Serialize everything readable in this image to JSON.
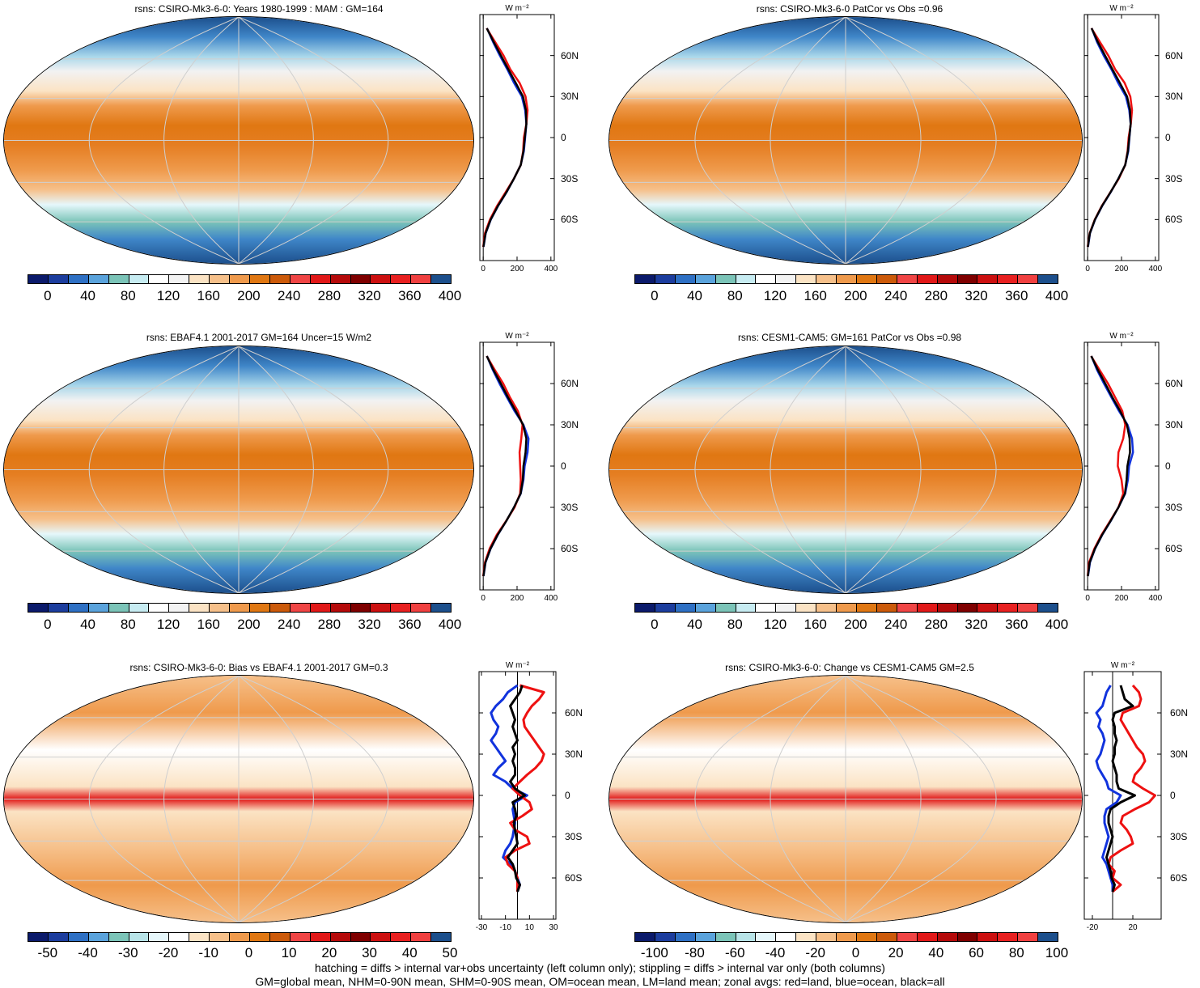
{
  "chart_data": [
    {
      "type": "heatmap",
      "title": "rsns: CSIRO-Mk3-6-0: Years 1980-1999 : MAM : GM=164",
      "colorbar_ticks": [
        "0",
        "40",
        "80",
        "120",
        "160",
        "200",
        "240",
        "280",
        "320",
        "360",
        "400"
      ],
      "zonal_units": "W m⁻²",
      "zonal_xticks": [
        "0",
        "200",
        "400"
      ],
      "zonal_xrange": [
        -20,
        420
      ],
      "lat_ticks": [
        "60N",
        "30N",
        "0",
        "30S",
        "60S"
      ],
      "zonal": {
        "lat": [
          80,
          70,
          60,
          50,
          40,
          30,
          20,
          10,
          0,
          -10,
          -20,
          -30,
          -40,
          -50,
          -60,
          -70,
          -80
        ],
        "land": [
          20,
          70,
          120,
          160,
          215,
          250,
          262,
          255,
          240,
          236,
          222,
          182,
          132,
          82,
          40,
          10,
          0
        ],
        "ocean": [
          22,
          58,
          98,
          142,
          182,
          228,
          248,
          255,
          248,
          240,
          222,
          182,
          138,
          88,
          45,
          15,
          2
        ],
        "all": [
          21,
          62,
          105,
          148,
          192,
          235,
          252,
          255,
          246,
          238,
          222,
          182,
          137,
          87,
          44,
          14,
          1
        ]
      }
    },
    {
      "type": "heatmap",
      "title": "rsns: CSIRO-Mk3-6-0 PatCor vs Obs =0.96",
      "colorbar_ticks": [
        "0",
        "40",
        "80",
        "120",
        "160",
        "200",
        "240",
        "280",
        "320",
        "360",
        "400"
      ],
      "zonal_units": "W m⁻²",
      "zonal_xticks": [
        "0",
        "200",
        "400"
      ],
      "zonal_xrange": [
        -20,
        420
      ],
      "lat_ticks": [
        "60N",
        "30N",
        "0",
        "30S",
        "60S"
      ],
      "zonal": {
        "lat": [
          80,
          70,
          60,
          50,
          40,
          30,
          20,
          10,
          0,
          -10,
          -20,
          -30,
          -40,
          -50,
          -60,
          -70,
          -80
        ],
        "land": [
          22,
          72,
          122,
          162,
          218,
          252,
          262,
          255,
          242,
          236,
          222,
          184,
          134,
          84,
          42,
          12,
          0
        ],
        "ocean": [
          24,
          55,
          95,
          140,
          180,
          226,
          246,
          254,
          247,
          240,
          222,
          182,
          136,
          86,
          44,
          14,
          2
        ],
        "all": [
          23,
          60,
          103,
          146,
          190,
          233,
          250,
          254,
          246,
          238,
          222,
          182,
          135,
          85,
          43,
          13,
          1
        ]
      }
    },
    {
      "type": "heatmap",
      "title": "rsns: EBAF4.1 2001-2017 GM=164 Uncer=15 W/m2",
      "colorbar_ticks": [
        "0",
        "40",
        "80",
        "120",
        "160",
        "200",
        "240",
        "280",
        "320",
        "360",
        "400"
      ],
      "zonal_units": "W m⁻²",
      "zonal_xticks": [
        "0",
        "200",
        "400"
      ],
      "zonal_xrange": [
        -20,
        420
      ],
      "lat_ticks": [
        "60N",
        "30N",
        "0",
        "30S",
        "60S"
      ],
      "zonal": {
        "lat": [
          80,
          70,
          60,
          50,
          40,
          30,
          20,
          10,
          0,
          -10,
          -20,
          -30,
          -40,
          -50,
          -60,
          -70,
          -80
        ],
        "land": [
          20,
          68,
          118,
          158,
          205,
          232,
          225,
          215,
          218,
          222,
          218,
          185,
          135,
          80,
          38,
          10,
          0
        ],
        "ocean": [
          22,
          56,
          96,
          140,
          185,
          238,
          268,
          262,
          245,
          238,
          222,
          182,
          136,
          86,
          44,
          14,
          2
        ],
        "all": [
          21,
          60,
          104,
          146,
          192,
          236,
          255,
          250,
          238,
          234,
          221,
          182,
          136,
          85,
          43,
          13,
          1
        ]
      }
    },
    {
      "type": "heatmap",
      "title": "rsns: CESM1-CAM5: GM=161 PatCor vs Obs =0.98",
      "colorbar_ticks": [
        "0",
        "40",
        "80",
        "120",
        "160",
        "200",
        "240",
        "280",
        "320",
        "360",
        "400"
      ],
      "zonal_units": "W m⁻²",
      "zonal_xticks": [
        "0",
        "200",
        "400"
      ],
      "zonal_xrange": [
        -20,
        420
      ],
      "lat_ticks": [
        "60N",
        "30N",
        "0",
        "30S",
        "60S"
      ],
      "zonal": {
        "lat": [
          80,
          70,
          60,
          50,
          40,
          30,
          20,
          10,
          0,
          -10,
          -20,
          -30,
          -40,
          -50,
          -60,
          -70,
          -80
        ],
        "land": [
          20,
          70,
          120,
          162,
          205,
          222,
          210,
          182,
          178,
          200,
          210,
          182,
          132,
          82,
          40,
          8,
          0
        ],
        "ocean": [
          22,
          55,
          96,
          140,
          185,
          236,
          262,
          268,
          245,
          238,
          222,
          182,
          136,
          86,
          44,
          14,
          2
        ],
        "all": [
          21,
          60,
          104,
          146,
          192,
          232,
          248,
          250,
          235,
          230,
          220,
          182,
          135,
          85,
          43,
          12,
          1
        ]
      }
    },
    {
      "type": "heatmap",
      "title": "rsns: CSIRO-Mk3-6-0: Bias vs EBAF4.1 2001-2017 GM=0.3",
      "colorbar_ticks": [
        "-50",
        "-40",
        "-30",
        "-20",
        "-10",
        "0",
        "10",
        "20",
        "30",
        "40",
        "50"
      ],
      "zonal_units": "W m⁻²",
      "zonal_xticks": [
        "-30",
        "-10",
        "10",
        "30"
      ],
      "zonal_xrange": [
        -32,
        32
      ],
      "lat_ticks": [
        "60N",
        "30N",
        "0",
        "30S",
        "60S"
      ],
      "zonal": {
        "lat": [
          80,
          75,
          70,
          65,
          60,
          55,
          50,
          45,
          40,
          35,
          30,
          25,
          20,
          15,
          10,
          5,
          0,
          -5,
          -10,
          -15,
          -20,
          -25,
          -30,
          -35,
          -40,
          -45,
          -50,
          -55,
          -60,
          -65,
          -70
        ],
        "land": [
          2,
          22,
          18,
          12,
          8,
          5,
          6,
          10,
          14,
          18,
          22,
          20,
          15,
          8,
          2,
          -4,
          2,
          10,
          12,
          4,
          -6,
          -2,
          8,
          10,
          -2,
          -10,
          -8,
          -2,
          0,
          0,
          0
        ],
        "ocean": [
          0,
          -8,
          -12,
          -18,
          -22,
          -20,
          -16,
          -18,
          -22,
          -18,
          -14,
          -10,
          -16,
          -20,
          -10,
          -4,
          8,
          -2,
          -4,
          -3,
          -2,
          -3,
          -4,
          -6,
          -10,
          -12,
          -6,
          -2,
          0,
          2,
          0
        ],
        "all": [
          4,
          2,
          -2,
          -6,
          -4,
          -2,
          -4,
          -2,
          0,
          -4,
          -2,
          -4,
          -2,
          -2,
          -6,
          -2,
          6,
          -4,
          -2,
          -1,
          -3,
          -2,
          -1,
          0,
          -4,
          -8,
          -4,
          -2,
          -1,
          2,
          0
        ]
      }
    },
    {
      "type": "heatmap",
      "title": "rsns: CSIRO-Mk3-6-0: Change vs CESM1-CAM5 GM=2.5",
      "colorbar_ticks": [
        "-100",
        "-80",
        "-60",
        "-40",
        "-20",
        "0",
        "20",
        "40",
        "60",
        "80",
        "100"
      ],
      "zonal_units": "W m⁻²",
      "zonal_xticks": [
        "-20",
        "20"
      ],
      "zonal_xrange": [
        -28,
        48
      ],
      "lat_ticks": [
        "60N",
        "30N",
        "0",
        "30S",
        "60S"
      ],
      "zonal": {
        "lat": [
          80,
          75,
          70,
          65,
          60,
          55,
          50,
          45,
          40,
          35,
          30,
          25,
          20,
          15,
          10,
          5,
          0,
          -5,
          -10,
          -15,
          -20,
          -25,
          -30,
          -35,
          -40,
          -45,
          -50,
          -55,
          -60,
          -65,
          -70
        ],
        "land": [
          20,
          26,
          28,
          26,
          10,
          8,
          12,
          16,
          20,
          24,
          30,
          32,
          28,
          22,
          20,
          30,
          42,
          36,
          22,
          10,
          8,
          14,
          18,
          20,
          8,
          -2,
          -4,
          2,
          0,
          8,
          0
        ],
        "ocean": [
          -2,
          -6,
          -8,
          -10,
          -16,
          -12,
          -14,
          -10,
          -8,
          -10,
          -12,
          -16,
          -14,
          -10,
          -6,
          -4,
          8,
          4,
          -6,
          -8,
          -8,
          -6,
          -4,
          -6,
          -8,
          -10,
          -6,
          -4,
          -2,
          0,
          0
        ],
        "all": [
          8,
          10,
          12,
          20,
          2,
          0,
          2,
          2,
          4,
          2,
          2,
          0,
          2,
          4,
          4,
          6,
          22,
          8,
          -2,
          -4,
          -4,
          -2,
          0,
          -2,
          -4,
          -6,
          -4,
          -2,
          -1,
          2,
          0
        ]
      }
    }
  ],
  "footer": {
    "line1": "hatching = diffs > internal var+obs uncertainty (left column only); stippling = diffs > internal var only (both columns)",
    "line2": "GM=global mean, NHM=0-90N mean, SHM=0-90S mean, OM=ocean mean, LM=land mean; zonal avgs: red=land, blue=ocean, black=all"
  },
  "colors": {
    "land": "#ee1111",
    "ocean": "#1133dd",
    "all": "#000000",
    "abs_colorbar": [
      "#0b1a6b",
      "#1c3d9e",
      "#2e70c4",
      "#5aa3dc",
      "#7bc4b8",
      "#c7ecf2",
      "#ffffff",
      "#f3f3f3",
      "#fbe3c4",
      "#f6c08a",
      "#ef9a4c",
      "#e07712",
      "#cc5a0a",
      "#f04545",
      "#e11818",
      "#b50a0a",
      "#7f0000",
      "#cc1010",
      "#e82020",
      "#f04040",
      "#1c4f8c"
    ],
    "diff_colorbar": [
      "#0b1a6b",
      "#1c3d9e",
      "#2e70c4",
      "#5aa3dc",
      "#7bc4b8",
      "#b8e4e8",
      "#e6f7fb",
      "#ffffff",
      "#fbe3c4",
      "#f6c08a",
      "#ef9a4c",
      "#e07712",
      "#cc5a0a",
      "#f04545",
      "#e11818",
      "#b50a0a",
      "#7f0000",
      "#cc1010",
      "#e82020",
      "#f04040",
      "#1c4f8c"
    ]
  }
}
